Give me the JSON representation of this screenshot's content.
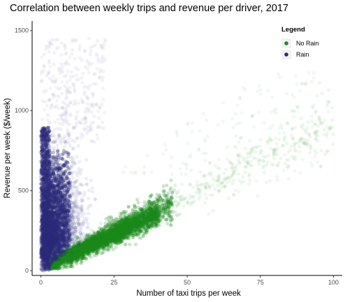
{
  "chart_data": {
    "type": "scatter",
    "title": "Correlation between weekly trips and revenue per driver, 2017",
    "xlabel": "Number of taxi trips per week",
    "ylabel": "Revenue per week ($/week)",
    "xlim": [
      -3,
      103
    ],
    "ylim": [
      -30,
      1560
    ],
    "x_ticks": [
      0,
      25,
      50,
      75,
      100
    ],
    "x_tick_labels": [
      "0",
      "25",
      "50",
      "75",
      "100"
    ],
    "y_ticks": [
      0,
      500,
      1000,
      1500
    ],
    "y_tick_labels": [
      "0",
      "500",
      "1000",
      "1500"
    ],
    "grid": false,
    "legend": {
      "title": "Legend",
      "placement": "top-right",
      "entries": [
        {
          "label": "No Rain",
          "color": "#1a8a1a"
        },
        {
          "label": "Rain",
          "color": "#2b2b7a"
        }
      ]
    },
    "series": [
      {
        "name": "No Rain",
        "color": "#1a8a1a",
        "description_trend": "revenue roughly 8-14 $ per trip, dense up to ~40 trips, sparse to 100 trips",
        "x_range": [
          0,
          100
        ],
        "y_range": [
          0,
          1200
        ]
      },
      {
        "name": "Rain",
        "color": "#2b2b7a",
        "x_range": [
          0,
          25
        ],
        "y_range": [
          0,
          1450
        ]
      }
    ]
  }
}
